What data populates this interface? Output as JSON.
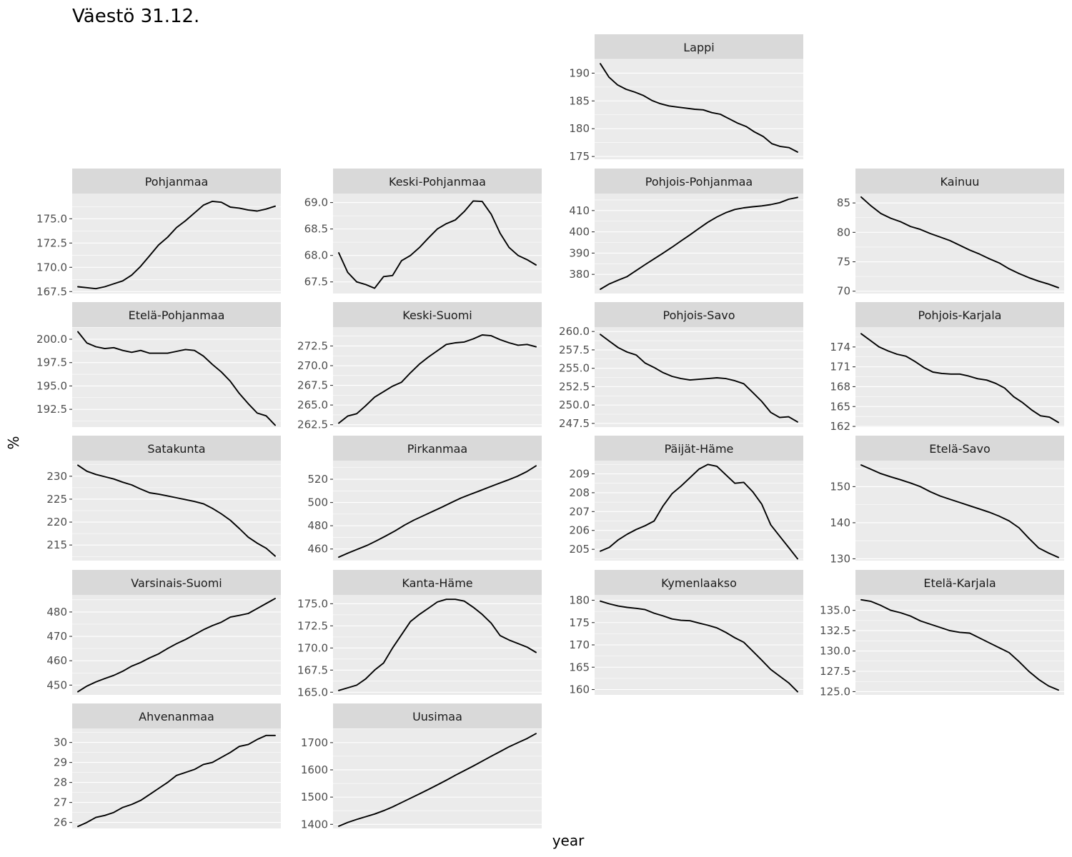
{
  "chart_data": {
    "type": "line",
    "title": "Väestö 31.12.",
    "xlabel": "year",
    "ylabel": "%",
    "grid": true,
    "x_axis_labels_shown": false,
    "panels": [
      {
        "name": "Lappi",
        "ticks": [
          175,
          180,
          185,
          190
        ],
        "tick_labels": [
          "175",
          "180",
          "185",
          "190"
        ],
        "ylim": [
          174.5,
          192.5
        ],
        "values": [
          191.7,
          189.3,
          187.9,
          187.1,
          186.6,
          186.0,
          185.1,
          184.5,
          184.1,
          183.9,
          183.7,
          183.5,
          183.4,
          182.9,
          182.6,
          181.8,
          181.0,
          180.4,
          179.4,
          178.6,
          177.3,
          176.8,
          176.6,
          175.8
        ]
      },
      {
        "name": "Pohjanmaa",
        "ticks": [
          167.5,
          170.0,
          172.5,
          175.0
        ],
        "tick_labels": [
          "167.5",
          "170.0",
          "172.5",
          "175.0"
        ],
        "ylim": [
          167.3,
          177.6
        ],
        "values": [
          168.0,
          167.9,
          167.8,
          168.0,
          168.3,
          168.6,
          169.2,
          170.1,
          171.2,
          172.3,
          173.1,
          174.1,
          174.8,
          175.6,
          176.4,
          176.8,
          176.7,
          176.2,
          176.1,
          175.9,
          175.8,
          176.0,
          176.3
        ]
      },
      {
        "name": "Keski-Pohjanmaa",
        "ticks": [
          67.5,
          68.0,
          68.5,
          69.0
        ],
        "tick_labels": [
          "67.5",
          "68.0",
          "68.5",
          "69.0"
        ],
        "ylim": [
          67.28,
          69.17
        ],
        "values": [
          68.05,
          67.68,
          67.5,
          67.45,
          67.38,
          67.6,
          67.62,
          67.9,
          68.0,
          68.15,
          68.33,
          68.5,
          68.6,
          68.67,
          68.83,
          69.03,
          69.02,
          68.78,
          68.42,
          68.15,
          68.0,
          67.92,
          67.82
        ]
      },
      {
        "name": "Pohjois-Pohjanmaa",
        "ticks": [
          380,
          390,
          400,
          410
        ],
        "tick_labels": [
          "380",
          "390",
          "400",
          "410"
        ],
        "ylim": [
          371,
          418
        ],
        "values": [
          373.0,
          375.5,
          377.3,
          379.0,
          381.8,
          384.6,
          387.3,
          390.0,
          392.8,
          395.7,
          398.6,
          401.6,
          404.5,
          407.0,
          409.0,
          410.5,
          411.3,
          411.8,
          412.2,
          412.8,
          413.7,
          415.3,
          416.2
        ]
      },
      {
        "name": "Kainuu",
        "ticks": [
          70,
          75,
          80,
          85
        ],
        "tick_labels": [
          "70",
          "75",
          "80",
          "85"
        ],
        "ylim": [
          69.6,
          86.6
        ],
        "values": [
          86.0,
          84.5,
          83.2,
          82.4,
          81.8,
          81.0,
          80.5,
          79.8,
          79.2,
          78.6,
          77.8,
          77.0,
          76.3,
          75.5,
          74.8,
          73.8,
          73.0,
          72.3,
          71.7,
          71.2,
          70.6
        ]
      },
      {
        "name": "Etelä-Pohjanmaa",
        "ticks": [
          192.5,
          195.0,
          197.5,
          200.0
        ],
        "tick_labels": [
          "192.5",
          "195.0",
          "197.5",
          "200.0"
        ],
        "ylim": [
          190.6,
          201.3
        ],
        "values": [
          200.8,
          199.6,
          199.2,
          199.0,
          199.1,
          198.8,
          198.6,
          198.8,
          198.5,
          198.5,
          198.5,
          198.7,
          198.9,
          198.8,
          198.2,
          197.3,
          196.5,
          195.5,
          194.2,
          193.1,
          192.1,
          191.8,
          190.8
        ]
      },
      {
        "name": "Keski-Suomi",
        "ticks": [
          262.5,
          265.0,
          267.5,
          270.0,
          272.5
        ],
        "tick_labels": [
          "262.5",
          "265.0",
          "267.5",
          "270.0",
          "272.5"
        ],
        "ylim": [
          262.2,
          274.9
        ],
        "values": [
          262.7,
          263.6,
          263.9,
          264.9,
          266.0,
          266.7,
          267.4,
          267.9,
          269.1,
          270.2,
          271.1,
          271.9,
          272.7,
          272.9,
          273.0,
          273.4,
          273.9,
          273.8,
          273.3,
          272.9,
          272.6,
          272.7,
          272.4
        ]
      },
      {
        "name": "Pohjois-Savo",
        "ticks": [
          247.5,
          250.0,
          252.5,
          255.0,
          257.5,
          260.0
        ],
        "tick_labels": [
          "247.5",
          "250.0",
          "252.5",
          "255.0",
          "257.5",
          "260.0"
        ],
        "ylim": [
          247.0,
          260.6
        ],
        "values": [
          259.6,
          258.7,
          257.8,
          257.2,
          256.8,
          255.7,
          255.1,
          254.4,
          253.9,
          253.6,
          253.4,
          253.5,
          253.6,
          253.7,
          253.6,
          253.3,
          252.9,
          251.7,
          250.5,
          249.0,
          248.3,
          248.4,
          247.7
        ]
      },
      {
        "name": "Pohjois-Karjala",
        "ticks": [
          162,
          165,
          168,
          171,
          174
        ],
        "tick_labels": [
          "162",
          "165",
          "168",
          "171",
          "174"
        ],
        "ylim": [
          161.9,
          177.0
        ],
        "values": [
          176.0,
          175.0,
          174.0,
          173.4,
          172.9,
          172.6,
          171.8,
          170.9,
          170.2,
          170.0,
          169.9,
          169.9,
          169.6,
          169.2,
          169.0,
          168.5,
          167.8,
          166.5,
          165.6,
          164.5,
          163.6,
          163.4,
          162.6
        ]
      },
      {
        "name": "Satakunta",
        "ticks": [
          215,
          220,
          225,
          230
        ],
        "tick_labels": [
          "215",
          "220",
          "225",
          "230"
        ],
        "ylim": [
          211.6,
          233.4
        ],
        "values": [
          232.4,
          231.1,
          230.4,
          229.9,
          229.4,
          228.7,
          228.1,
          227.2,
          226.4,
          226.1,
          225.7,
          225.3,
          224.9,
          224.5,
          224.0,
          223.0,
          221.8,
          220.4,
          218.6,
          216.7,
          215.4,
          214.3,
          212.6
        ]
      },
      {
        "name": "Pirkanmaa",
        "ticks": [
          460,
          480,
          500,
          520
        ],
        "tick_labels": [
          "460",
          "480",
          "500",
          "520"
        ],
        "ylim": [
          450,
          536
        ],
        "values": [
          453.0,
          456.5,
          459.8,
          463.0,
          467.0,
          471.2,
          475.6,
          480.5,
          484.8,
          488.6,
          492.3,
          496.1,
          500.0,
          503.8,
          507.0,
          510.0,
          513.2,
          516.3,
          519.3,
          522.5,
          526.5,
          531.5
        ]
      },
      {
        "name": "Päijät-Häme",
        "ticks": [
          205,
          206,
          207,
          208,
          209
        ],
        "tick_labels": [
          "205",
          "206",
          "207",
          "208",
          "209"
        ],
        "ylim": [
          204.4,
          209.7
        ],
        "values": [
          204.9,
          205.1,
          205.5,
          205.8,
          206.05,
          206.25,
          206.5,
          207.3,
          207.95,
          208.35,
          208.8,
          209.25,
          209.5,
          209.4,
          208.95,
          208.5,
          208.55,
          208.05,
          207.4,
          206.3,
          205.7,
          205.1,
          204.5
        ]
      },
      {
        "name": "Etelä-Savo",
        "ticks": [
          130,
          140,
          150
        ],
        "tick_labels": [
          "130",
          "140",
          "150"
        ],
        "ylim": [
          129.5,
          157.2
        ],
        "values": [
          156.0,
          154.8,
          153.6,
          152.7,
          151.9,
          151.0,
          150.0,
          148.6,
          147.4,
          146.5,
          145.6,
          144.7,
          143.8,
          142.9,
          141.8,
          140.5,
          138.6,
          135.7,
          133.0,
          131.6,
          130.4
        ]
      },
      {
        "name": "Varsinais-Suomi",
        "ticks": [
          450,
          460,
          470,
          480
        ],
        "tick_labels": [
          "450",
          "460",
          "470",
          "480"
        ],
        "ylim": [
          446.0,
          487.0
        ],
        "values": [
          447.3,
          449.6,
          451.3,
          452.7,
          454.0,
          455.7,
          457.8,
          459.3,
          461.2,
          462.8,
          465.0,
          467.0,
          468.7,
          470.7,
          472.7,
          474.4,
          475.8,
          477.9,
          478.6,
          479.4,
          481.4,
          483.5,
          485.5
        ]
      },
      {
        "name": "Kanta-Häme",
        "ticks": [
          165.0,
          167.5,
          170.0,
          172.5,
          175.0
        ],
        "tick_labels": [
          "165.0",
          "167.5",
          "170.0",
          "172.5",
          "175.0"
        ],
        "ylim": [
          164.7,
          176.0
        ],
        "values": [
          165.2,
          165.5,
          165.8,
          166.5,
          167.5,
          168.3,
          170.0,
          171.5,
          173.0,
          173.8,
          174.5,
          175.2,
          175.5,
          175.5,
          175.3,
          174.6,
          173.8,
          172.8,
          171.4,
          170.9,
          170.5,
          170.1,
          169.5
        ]
      },
      {
        "name": "Kymenlaakso",
        "ticks": [
          160,
          165,
          170,
          175,
          180
        ],
        "tick_labels": [
          "160",
          "165",
          "170",
          "175",
          "180"
        ],
        "ylim": [
          158.8,
          181.2
        ],
        "values": [
          179.8,
          179.2,
          178.7,
          178.4,
          178.2,
          177.9,
          177.1,
          176.5,
          175.8,
          175.5,
          175.4,
          174.9,
          174.4,
          173.8,
          172.8,
          171.6,
          170.6,
          168.6,
          166.6,
          164.5,
          163.0,
          161.5,
          159.5
        ]
      },
      {
        "name": "Etelä-Karjala",
        "ticks": [
          125.0,
          127.5,
          130.0,
          132.5,
          135.0
        ],
        "tick_labels": [
          "125.0",
          "127.5",
          "130.0",
          "132.5",
          "135.0"
        ],
        "ylim": [
          124.6,
          136.9
        ],
        "values": [
          136.3,
          136.1,
          135.6,
          135.0,
          134.7,
          134.3,
          133.7,
          133.3,
          132.9,
          132.5,
          132.3,
          132.2,
          131.6,
          131.0,
          130.4,
          129.8,
          128.7,
          127.5,
          126.5,
          125.7,
          125.2
        ]
      },
      {
        "name": "Ahvenanmaa",
        "ticks": [
          26,
          27,
          28,
          29,
          30
        ],
        "tick_labels": [
          "26",
          "27",
          "28",
          "29",
          "30"
        ],
        "ylim": [
          25.7,
          30.7
        ],
        "values": [
          25.8,
          26.0,
          26.25,
          26.35,
          26.5,
          26.75,
          26.9,
          27.1,
          27.4,
          27.7,
          28.0,
          28.35,
          28.5,
          28.65,
          28.9,
          29.0,
          29.25,
          29.5,
          29.8,
          29.9,
          30.15,
          30.35,
          30.35
        ]
      },
      {
        "name": "Uusimaa",
        "ticks": [
          1400,
          1500,
          1600,
          1700
        ],
        "tick_labels": [
          "1400",
          "1500",
          "1600",
          "1700"
        ],
        "ylim": [
          1385,
          1752
        ],
        "values": [
          1393,
          1407,
          1418,
          1428,
          1438,
          1450,
          1464,
          1480,
          1496,
          1512,
          1528,
          1545,
          1562,
          1580,
          1597,
          1614,
          1632,
          1650,
          1667,
          1685,
          1700,
          1715,
          1733
        ]
      }
    ]
  }
}
